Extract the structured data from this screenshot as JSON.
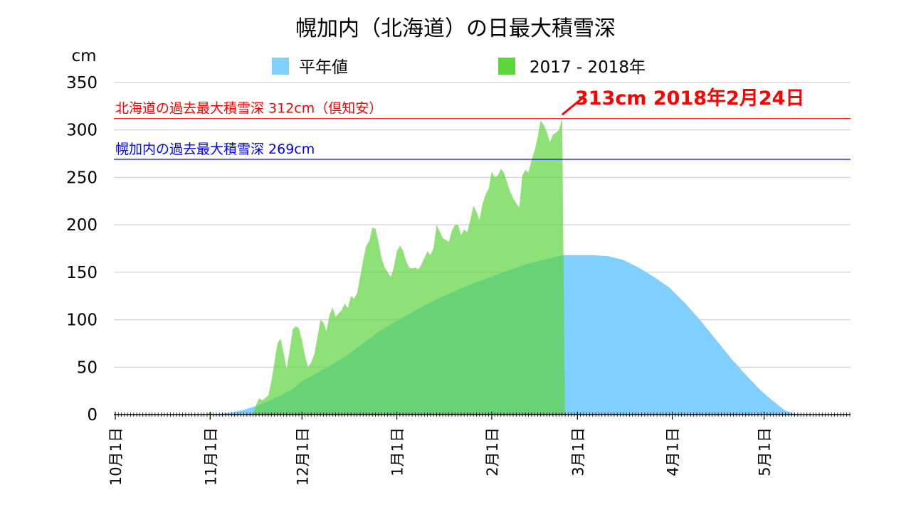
{
  "chart_data": {
    "type": "area",
    "title": "幌加内（北海道）の日最大積雪深",
    "ylabel": "cm",
    "xlabel": "",
    "ylim": [
      0,
      350
    ],
    "yticks": [
      0,
      50,
      100,
      150,
      200,
      250,
      300,
      350
    ],
    "xlim": [
      "10-01",
      "05-31"
    ],
    "xticks": [
      {
        "date": "10-01",
        "label": "10月1日"
      },
      {
        "date": "11-01",
        "label": "11月1日"
      },
      {
        "date": "12-01",
        "label": "12月1日"
      },
      {
        "date": "01-01",
        "label": "1月1日"
      },
      {
        "date": "02-01",
        "label": "2月1日"
      },
      {
        "date": "03-01",
        "label": "3月1日"
      },
      {
        "date": "04-01",
        "label": "4月1日"
      },
      {
        "date": "05-01",
        "label": "5月1日"
      }
    ],
    "grid": true,
    "legend_position": "top",
    "series": [
      {
        "name": "平年値",
        "color": "#7fcfff",
        "points": [
          [
            "10-31",
            0
          ],
          [
            "11-04",
            1
          ],
          [
            "11-08",
            2
          ],
          [
            "11-12",
            5
          ],
          [
            "11-16",
            9
          ],
          [
            "11-20",
            14
          ],
          [
            "11-24",
            20
          ],
          [
            "11-28",
            27
          ],
          [
            "12-01",
            35
          ],
          [
            "12-06",
            44
          ],
          [
            "12-11",
            53
          ],
          [
            "12-16",
            63
          ],
          [
            "12-21",
            75
          ],
          [
            "12-26",
            87
          ],
          [
            "12-31",
            97
          ],
          [
            "01-05",
            106
          ],
          [
            "01-10",
            115
          ],
          [
            "01-15",
            123
          ],
          [
            "01-20",
            130
          ],
          [
            "01-25",
            137
          ],
          [
            "01-30",
            143
          ],
          [
            "02-04",
            149
          ],
          [
            "02-09",
            155
          ],
          [
            "02-14",
            160
          ],
          [
            "02-19",
            164
          ],
          [
            "02-24",
            168
          ],
          [
            "03-01",
            168
          ],
          [
            "03-06",
            168
          ],
          [
            "03-11",
            167
          ],
          [
            "03-16",
            163
          ],
          [
            "03-21",
            155
          ],
          [
            "03-26",
            145
          ],
          [
            "03-31",
            134
          ],
          [
            "04-05",
            118
          ],
          [
            "04-10",
            100
          ],
          [
            "04-15",
            80
          ],
          [
            "04-20",
            60
          ],
          [
            "04-25",
            42
          ],
          [
            "04-30",
            25
          ],
          [
            "05-04",
            14
          ],
          [
            "05-08",
            4
          ],
          [
            "05-11",
            1
          ],
          [
            "05-12",
            0
          ]
        ]
      },
      {
        "name": "2017 - 2018年",
        "color": "#5ed43c",
        "points": [
          [
            "10-31",
            0
          ],
          [
            "11-01",
            3
          ],
          [
            "11-02",
            0
          ],
          [
            "11-15",
            0
          ],
          [
            "11-16",
            10
          ],
          [
            "11-17",
            17
          ],
          [
            "11-18",
            15
          ],
          [
            "11-20",
            20
          ],
          [
            "11-21",
            35
          ],
          [
            "11-22",
            55
          ],
          [
            "11-23",
            75
          ],
          [
            "11-24",
            80
          ],
          [
            "11-25",
            65
          ],
          [
            "11-26",
            48
          ],
          [
            "11-27",
            68
          ],
          [
            "11-28",
            90
          ],
          [
            "11-29",
            93
          ],
          [
            "11-30",
            91
          ],
          [
            "12-01",
            78
          ],
          [
            "12-02",
            62
          ],
          [
            "12-03",
            50
          ],
          [
            "12-04",
            55
          ],
          [
            "12-05",
            63
          ],
          [
            "12-06",
            80
          ],
          [
            "12-07",
            100
          ],
          [
            "12-08",
            97
          ],
          [
            "12-09",
            88
          ],
          [
            "12-10",
            105
          ],
          [
            "12-11",
            113
          ],
          [
            "12-12",
            103
          ],
          [
            "12-13",
            107
          ],
          [
            "12-14",
            110
          ],
          [
            "12-15",
            117
          ],
          [
            "12-16",
            112
          ],
          [
            "12-17",
            125
          ],
          [
            "12-18",
            122
          ],
          [
            "12-19",
            128
          ],
          [
            "12-20",
            145
          ],
          [
            "12-21",
            163
          ],
          [
            "12-22",
            178
          ],
          [
            "12-23",
            183
          ],
          [
            "12-24",
            197
          ],
          [
            "12-25",
            196
          ],
          [
            "12-26",
            182
          ],
          [
            "12-27",
            165
          ],
          [
            "12-28",
            155
          ],
          [
            "12-29",
            150
          ],
          [
            "12-30",
            145
          ],
          [
            "12-31",
            155
          ],
          [
            "01-01",
            172
          ],
          [
            "01-02",
            178
          ],
          [
            "01-03",
            173
          ],
          [
            "01-04",
            162
          ],
          [
            "01-05",
            155
          ],
          [
            "01-06",
            154
          ],
          [
            "01-07",
            155
          ],
          [
            "01-08",
            153
          ],
          [
            "01-09",
            158
          ],
          [
            "01-10",
            165
          ],
          [
            "01-11",
            172
          ],
          [
            "01-12",
            168
          ],
          [
            "01-13",
            176
          ],
          [
            "01-14",
            200
          ],
          [
            "01-15",
            193
          ],
          [
            "01-16",
            186
          ],
          [
            "01-17",
            184
          ],
          [
            "01-18",
            182
          ],
          [
            "01-19",
            194
          ],
          [
            "01-20",
            200
          ],
          [
            "01-21",
            200
          ],
          [
            "01-22",
            189
          ],
          [
            "01-23",
            195
          ],
          [
            "01-24",
            192
          ],
          [
            "01-25",
            205
          ],
          [
            "01-26",
            220
          ],
          [
            "01-27",
            214
          ],
          [
            "01-28",
            205
          ],
          [
            "01-29",
            222
          ],
          [
            "01-30",
            232
          ],
          [
            "01-31",
            238
          ],
          [
            "02-01",
            256
          ],
          [
            "02-02",
            250
          ],
          [
            "02-03",
            252
          ],
          [
            "02-04",
            259
          ],
          [
            "02-05",
            255
          ],
          [
            "02-06",
            245
          ],
          [
            "02-07",
            235
          ],
          [
            "02-08",
            228
          ],
          [
            "02-09",
            223
          ],
          [
            "02-10",
            218
          ],
          [
            "02-11",
            252
          ],
          [
            "02-12",
            258
          ],
          [
            "02-13",
            255
          ],
          [
            "02-14",
            268
          ],
          [
            "02-15",
            278
          ],
          [
            "02-16",
            292
          ],
          [
            "02-17",
            310
          ],
          [
            "02-18",
            305
          ],
          [
            "02-19",
            298
          ],
          [
            "02-20",
            287
          ],
          [
            "02-21",
            295
          ],
          [
            "02-22",
            297
          ],
          [
            "02-23",
            300
          ],
          [
            "02-24",
            313
          ],
          [
            "02-24",
            0
          ]
        ]
      }
    ],
    "reference_lines": [
      {
        "value": 312,
        "label": "北海道の過去最大積雪深 312cm（倶知安）",
        "color": "#ff0000"
      },
      {
        "value": 269,
        "label": "幌加内の過去最大積雪深 269cm",
        "color": "#0000ff"
      }
    ],
    "annotation": {
      "text": "313cm 2018年2月24日",
      "date": "02-24",
      "value": 313,
      "color": "#ff0000"
    }
  }
}
